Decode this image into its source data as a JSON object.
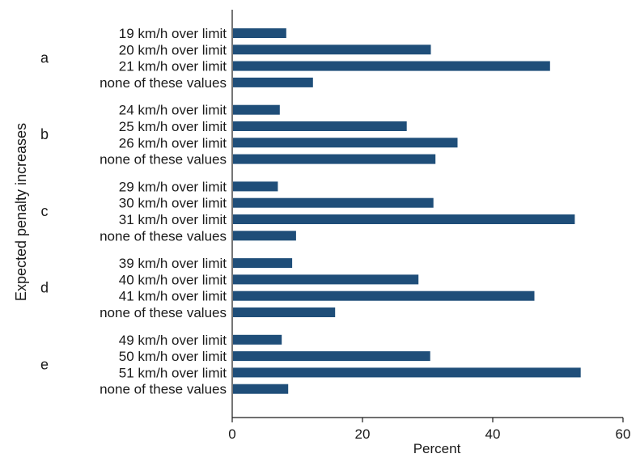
{
  "chart_data": {
    "type": "bar",
    "orientation": "horizontal",
    "title": "",
    "xlabel": "Percent",
    "ylabel": "Expected penalty increases",
    "xlim": [
      0,
      60
    ],
    "xticks": [
      0,
      20,
      40,
      60
    ],
    "grid": false,
    "bar_color": "#1f4e79",
    "groups": [
      {
        "label": "a",
        "bars": [
          {
            "category": "19 km/h over limit",
            "value": 8.3
          },
          {
            "category": "20 km/h over limit",
            "value": 30.5
          },
          {
            "category": "21 km/h over limit",
            "value": 48.8
          },
          {
            "category": "none of these values",
            "value": 12.4
          }
        ]
      },
      {
        "label": "b",
        "bars": [
          {
            "category": "24 km/h over limit",
            "value": 7.3
          },
          {
            "category": "25 km/h over limit",
            "value": 26.8
          },
          {
            "category": "26 km/h over limit",
            "value": 34.6
          },
          {
            "category": "none of these values",
            "value": 31.2
          }
        ]
      },
      {
        "label": "c",
        "bars": [
          {
            "category": "29 km/h over limit",
            "value": 7.0
          },
          {
            "category": "30 km/h over limit",
            "value": 30.9
          },
          {
            "category": "31 km/h over limit",
            "value": 52.6
          },
          {
            "category": "none of these values",
            "value": 9.8
          }
        ]
      },
      {
        "label": "d",
        "bars": [
          {
            "category": "39 km/h over limit",
            "value": 9.2
          },
          {
            "category": "40 km/h over limit",
            "value": 28.6
          },
          {
            "category": "41 km/h over limit",
            "value": 46.4
          },
          {
            "category": "none of these values",
            "value": 15.8
          }
        ]
      },
      {
        "label": "e",
        "bars": [
          {
            "category": "49 km/h over limit",
            "value": 7.6
          },
          {
            "category": "50 km/h over limit",
            "value": 30.4
          },
          {
            "category": "51 km/h over limit",
            "value": 53.5
          },
          {
            "category": "none of these values",
            "value": 8.6
          }
        ]
      }
    ]
  }
}
